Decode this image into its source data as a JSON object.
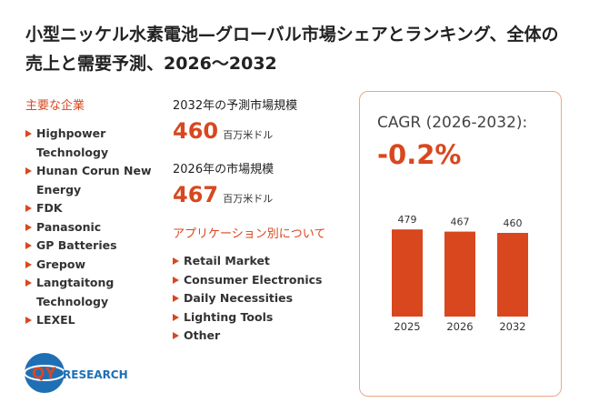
{
  "header": {
    "title": "小型ニッケル水素電池—グローバル市場シェアとランキング、全体の売上と需要予測、2026～2032"
  },
  "companies": {
    "heading": "主要な企業",
    "items": [
      "Highpower Technology",
      "Hunan Corun New Energy",
      "FDK",
      "Panasonic",
      "GP Batteries",
      "Grepow",
      "Langtaitong Technology",
      "LEXEL"
    ]
  },
  "market": {
    "forecast_label": "2032年の予測市場規模",
    "forecast_value": 460,
    "forecast_unit": "百万米ドル",
    "current_label": "2026年の市場規模",
    "current_value": 467,
    "current_unit": "百万米ドル"
  },
  "applications": {
    "heading": "アプリケーション別について",
    "items": [
      "Retail Market",
      "Consumer Electronics",
      "Daily Necessities",
      "Lighting Tools",
      "Other"
    ]
  },
  "logo": {
    "mark": "QY",
    "text": "RESEARCH"
  },
  "chart_data": {
    "type": "bar",
    "title": "CAGR (2026-2032):",
    "subtitle": "-0.2%",
    "categories": [
      "2025",
      "2026",
      "2032"
    ],
    "values": [
      479,
      467,
      460
    ],
    "color": "#d9471f"
  }
}
